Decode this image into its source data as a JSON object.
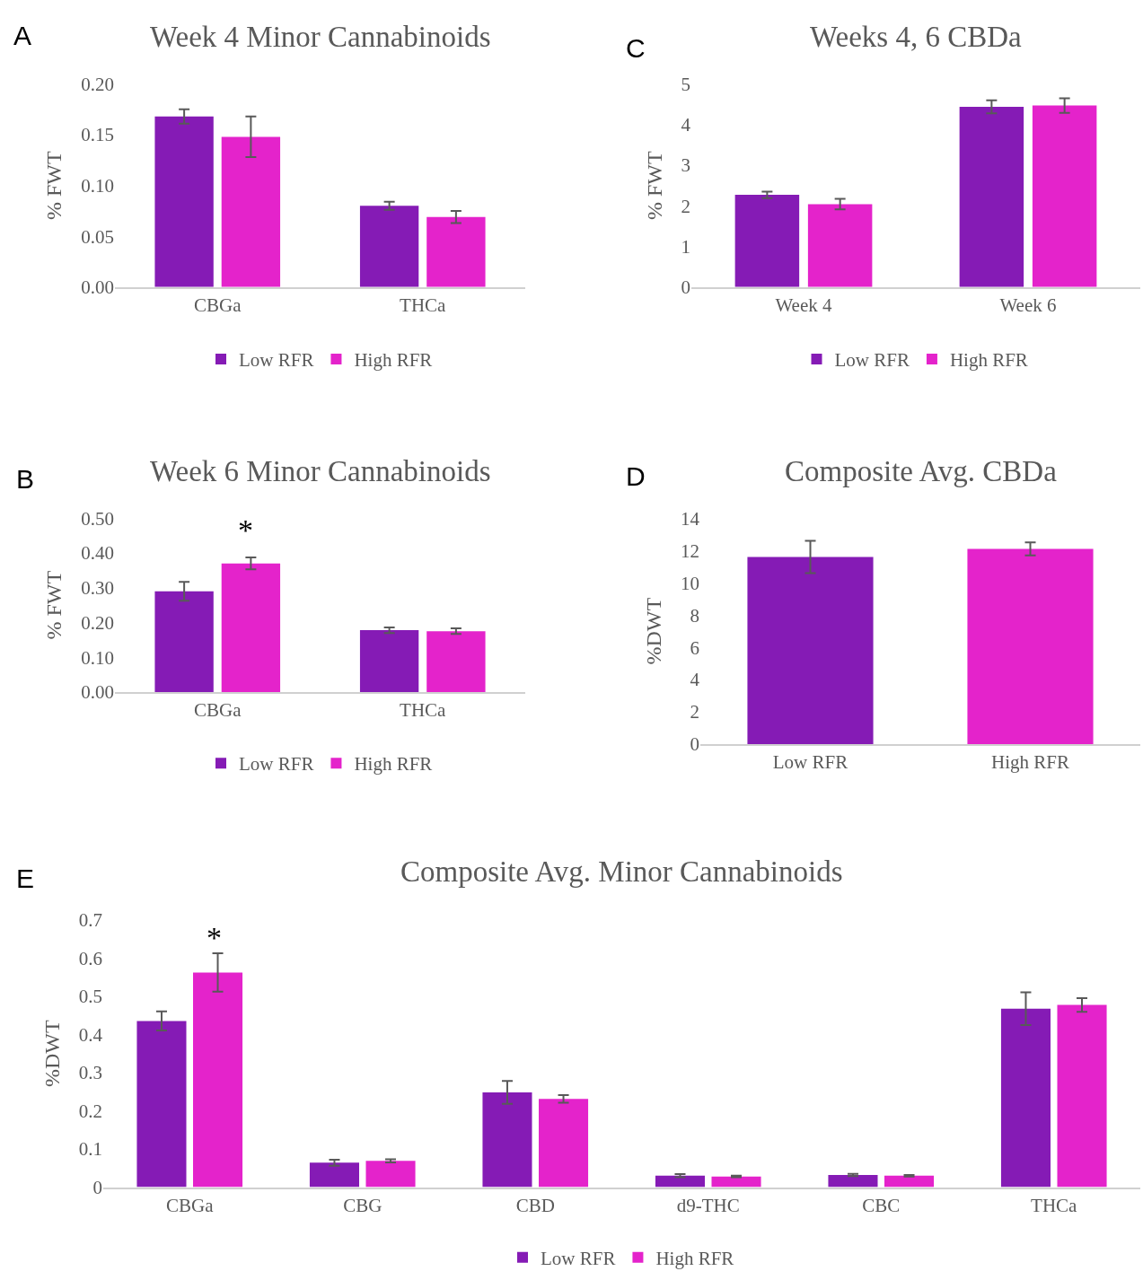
{
  "chart_data": [
    {
      "type": "bar",
      "title": "Week 4 Minor Cannabinoids",
      "ylabel": "% FWT",
      "annotations": [
        "A"
      ],
      "categories": [
        "CBGa",
        "THCa"
      ],
      "ylim": [
        0,
        0.2
      ],
      "yticks": [
        {
          "value": 0,
          "label": "0.00"
        },
        {
          "value": 0.05,
          "label": "0.05"
        },
        {
          "value": 0.1,
          "label": "0.10"
        },
        {
          "value": 0.15,
          "label": "0.15"
        },
        {
          "value": 0.2,
          "label": "0.20"
        }
      ],
      "grid": false,
      "legend": "bottom",
      "series": [
        {
          "name": "Low RFR",
          "color": "#851bb5",
          "values": [
            0.168,
            0.08
          ],
          "errors": [
            0.007,
            0.004
          ]
        },
        {
          "name": "High RFR",
          "color": "#e423cb",
          "values": [
            0.148,
            0.069
          ],
          "errors": [
            0.02,
            0.006
          ]
        }
      ]
    },
    {
      "type": "bar",
      "title": "Weeks 4, 6 CBDa",
      "ylabel": "% FWT",
      "annotations": [
        "C"
      ],
      "categories": [
        "Week 4",
        "Week 6"
      ],
      "ylim": [
        0,
        5
      ],
      "yticks": [
        0,
        1,
        2,
        3,
        4,
        5
      ],
      "grid": false,
      "legend": "bottom",
      "series": [
        {
          "name": "Low RFR",
          "color": "#851bb5",
          "values": [
            2.27,
            4.44
          ],
          "errors": [
            0.08,
            0.16
          ]
        },
        {
          "name": "High RFR",
          "color": "#e423cb",
          "values": [
            2.04,
            4.47
          ],
          "errors": [
            0.13,
            0.18
          ]
        }
      ]
    },
    {
      "type": "bar",
      "title": "Week 6 Minor Cannabinoids",
      "ylabel": "% FWT",
      "annotations": [
        "B",
        "*"
      ],
      "categories": [
        "CBGa",
        "THCa"
      ],
      "ylim": [
        0,
        0.5
      ],
      "yticks": [
        {
          "value": 0,
          "label": "0.00"
        },
        {
          "value": 0.1,
          "label": "0.10"
        },
        {
          "value": 0.2,
          "label": "0.20"
        },
        {
          "value": 0.3,
          "label": "0.30"
        },
        {
          "value": 0.4,
          "label": "0.40"
        },
        {
          "value": 0.5,
          "label": "0.50"
        }
      ],
      "grid": false,
      "legend": "bottom",
      "series": [
        {
          "name": "Low RFR",
          "color": "#851bb5",
          "values": [
            0.29,
            0.178
          ],
          "errors": [
            0.027,
            0.008
          ]
        },
        {
          "name": "High RFR",
          "color": "#e423cb",
          "values": [
            0.37,
            0.175
          ],
          "errors": [
            0.017,
            0.008
          ]
        }
      ]
    },
    {
      "type": "bar",
      "title": "Composite Avg. CBDa",
      "ylabel": "%DWT",
      "annotations": [
        "D"
      ],
      "categories": [
        "Low RFR",
        "High RFR"
      ],
      "ylim": [
        0,
        14
      ],
      "yticks": [
        0,
        2,
        4,
        6,
        8,
        10,
        12,
        14
      ],
      "grid": false,
      "values": [
        11.6,
        12.1
      ],
      "colors": [
        "#851bb5",
        "#e423cb"
      ],
      "errors": [
        1.0,
        0.4
      ]
    },
    {
      "type": "bar",
      "title": "Composite Avg. Minor Cannabinoids",
      "ylabel": "%DWT",
      "annotations": [
        "E",
        "*"
      ],
      "categories": [
        "CBGa",
        "CBG",
        "CBD",
        "d9-THC",
        "CBC",
        "THCa"
      ],
      "ylim": [
        0,
        0.7
      ],
      "yticks": [
        0,
        0.1,
        0.2,
        0.3,
        0.4,
        0.5,
        0.6,
        0.7
      ],
      "grid": false,
      "legend": "bottom",
      "series": [
        {
          "name": "Low RFR",
          "color": "#851bb5",
          "values": [
            0.435,
            0.064,
            0.248,
            0.03,
            0.032,
            0.467
          ],
          "errors": [
            0.025,
            0.008,
            0.03,
            0.004,
            0.003,
            0.043
          ]
        },
        {
          "name": "High RFR",
          "color": "#e423cb",
          "values": [
            0.562,
            0.069,
            0.231,
            0.028,
            0.03,
            0.477
          ],
          "errors": [
            0.05,
            0.004,
            0.01,
            0.002,
            0.002,
            0.018
          ]
        }
      ]
    }
  ]
}
